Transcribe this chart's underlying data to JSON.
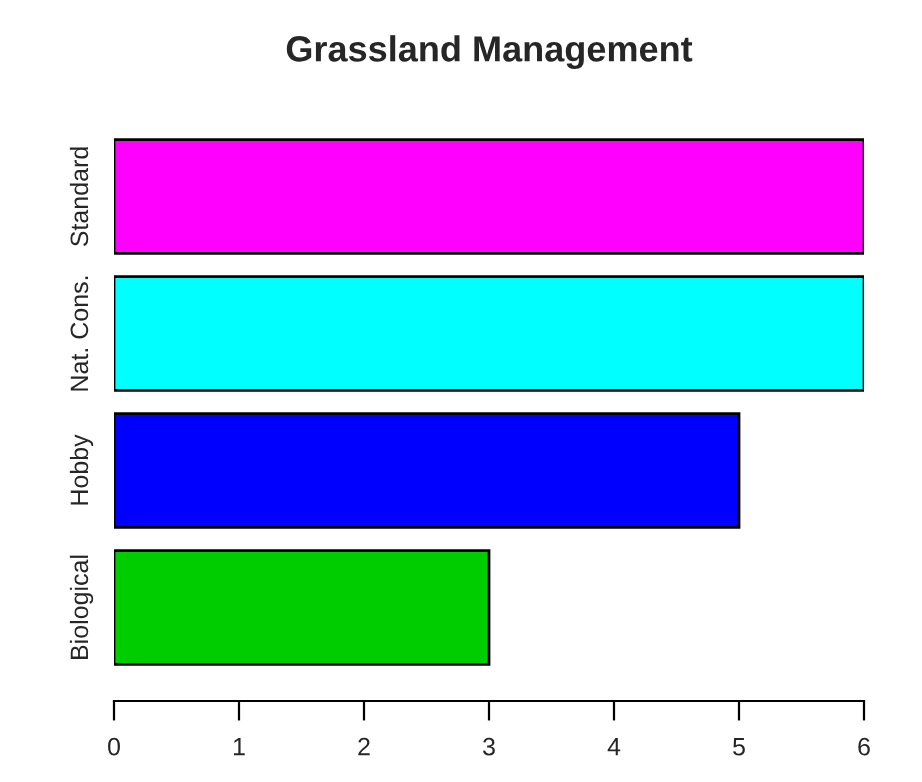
{
  "chart_data": {
    "type": "bar",
    "title": "Grassland Management",
    "orientation": "horizontal",
    "categories": [
      "Standard",
      "Nat. Cons.",
      "Hobby",
      "Biological"
    ],
    "values": [
      6,
      6,
      5,
      3
    ],
    "colors": [
      "#ff00ff",
      "#00ffff",
      "#0000ff",
      "#00cd00"
    ],
    "xlim": [
      0,
      6
    ],
    "xticks": [
      0,
      1,
      2,
      3,
      4,
      5,
      6
    ],
    "grid": false
  }
}
